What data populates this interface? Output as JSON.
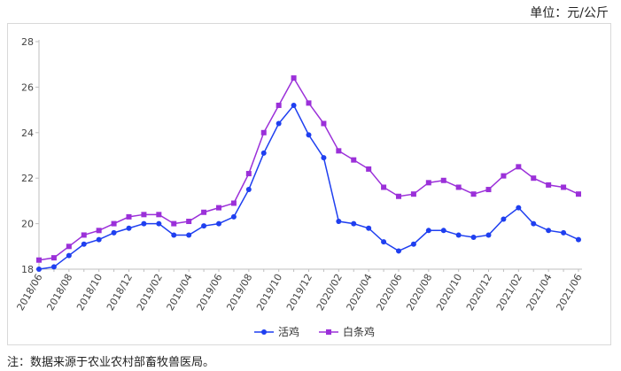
{
  "header": {
    "unit": "单位：元/公斤"
  },
  "footer": {
    "note": "注：数据来源于农业农村部畜牧兽医局。"
  },
  "chart_data": {
    "type": "line",
    "ylim": [
      18,
      28
    ],
    "yticks": [
      18,
      20,
      22,
      24,
      26,
      28
    ],
    "x": [
      "2018/06",
      "2018/07",
      "2018/08",
      "2018/09",
      "2018/10",
      "2018/11",
      "2018/12",
      "2019/01",
      "2019/02",
      "2019/03",
      "2019/04",
      "2019/05",
      "2019/06",
      "2019/07",
      "2019/08",
      "2019/09",
      "2019/10",
      "2019/11",
      "2019/12",
      "2020/01",
      "2020/02",
      "2020/03",
      "2020/04",
      "2020/05",
      "2020/06",
      "2020/07",
      "2020/08",
      "2020/09",
      "2020/10",
      "2020/11",
      "2020/12",
      "2021/01",
      "2021/02",
      "2021/03",
      "2021/04",
      "2021/05",
      "2021/06"
    ],
    "xtick_labels": [
      "2018/06",
      "2018/08",
      "2018/10",
      "2018/12",
      "2019/02",
      "2019/04",
      "2019/06",
      "2019/08",
      "2019/10",
      "2019/12",
      "2020/02",
      "2020/04",
      "2020/06",
      "2020/08",
      "2020/10",
      "2020/12",
      "2021/02",
      "2021/04",
      "2021/06"
    ],
    "series": [
      {
        "name": "活鸡",
        "color": "#1f3ff0",
        "marker": "circle",
        "values": [
          18.0,
          18.1,
          18.6,
          19.1,
          19.3,
          19.6,
          19.8,
          20.0,
          20.0,
          19.5,
          19.5,
          19.9,
          20.0,
          20.3,
          21.5,
          23.1,
          24.4,
          25.2,
          23.9,
          22.9,
          20.1,
          20.0,
          19.8,
          19.2,
          18.8,
          19.1,
          19.7,
          19.7,
          19.5,
          19.4,
          19.5,
          20.2,
          20.7,
          20.0,
          19.7,
          19.6,
          19.3
        ]
      },
      {
        "name": "白条鸡",
        "color": "#9b30d9",
        "marker": "square",
        "values": [
          18.4,
          18.5,
          19.0,
          19.5,
          19.7,
          20.0,
          20.3,
          20.4,
          20.4,
          20.0,
          20.1,
          20.5,
          20.7,
          20.9,
          22.2,
          24.0,
          25.2,
          26.4,
          25.3,
          24.4,
          23.2,
          22.8,
          22.4,
          21.6,
          21.2,
          21.3,
          21.8,
          21.9,
          21.6,
          21.3,
          21.5,
          22.1,
          22.5,
          22.0,
          21.7,
          21.6,
          21.3
        ]
      }
    ],
    "legend_position": "bottom",
    "grid": false
  }
}
